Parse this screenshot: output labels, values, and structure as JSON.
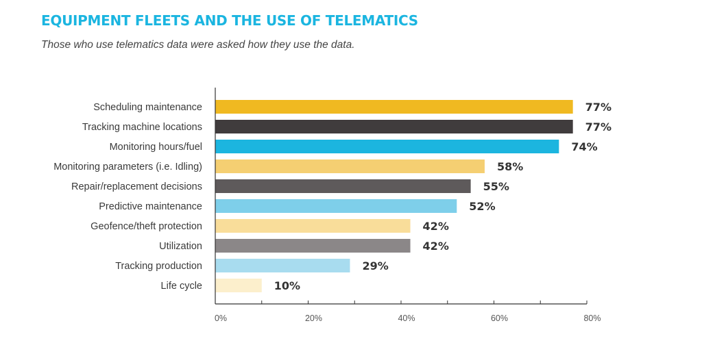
{
  "header": {
    "title": "EQUIPMENT FLEETS AND THE USE OF TELEMATICS",
    "subtitle": "Those who use telematics data were asked how they use the data."
  },
  "chart_data": {
    "type": "bar",
    "orientation": "horizontal",
    "categories": [
      "Scheduling maintenance",
      "Tracking machine locations",
      "Monitoring hours/fuel",
      "Monitoring parameters (i.e. Idling)",
      "Repair/replacement decisions",
      "Predictive maintenance",
      "Geofence/theft protection",
      "Utilization",
      "Tracking production",
      "Life cycle"
    ],
    "values": [
      77,
      77,
      74,
      58,
      55,
      52,
      42,
      42,
      29,
      10
    ],
    "value_labels": [
      "77%",
      "77%",
      "74%",
      "58%",
      "55%",
      "52%",
      "42%",
      "42%",
      "29%",
      "10%"
    ],
    "colors": [
      "#f0b921",
      "#403c3d",
      "#1cb5df",
      "#f5cf72",
      "#5e5a5b",
      "#7ecfea",
      "#f9dd9a",
      "#8b8788",
      "#a8dcef",
      "#fcefcc"
    ],
    "xlim": [
      0,
      80
    ],
    "xticks": [
      0,
      20,
      40,
      60,
      80
    ],
    "xtick_labels": [
      "0%",
      "20%",
      "40%",
      "60%",
      "80%"
    ],
    "grid": false
  }
}
